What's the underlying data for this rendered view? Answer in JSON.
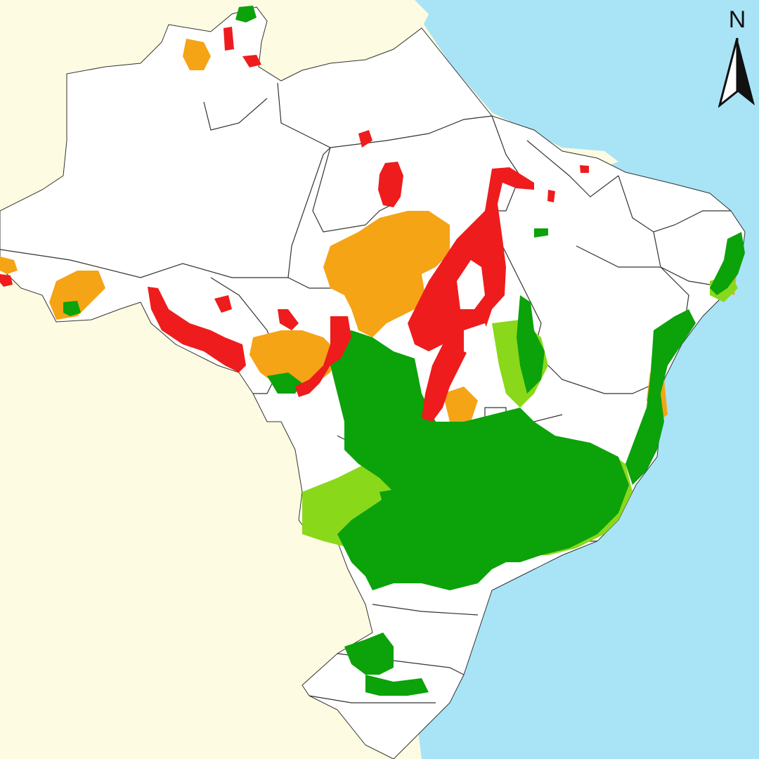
{
  "map": {
    "compass_label": "N",
    "colors": {
      "ocean": "#a8e4f6",
      "neighbor_land": "#fdfbe1",
      "brazil_land": "#ffffff",
      "borders": "#333333",
      "red_zone": "#ee1c1c",
      "orange_zone": "#f5a416",
      "green_zone": "#0ba20a",
      "light_green_zone": "#8ad81a"
    },
    "icons": [
      "north-arrow-icon"
    ]
  }
}
